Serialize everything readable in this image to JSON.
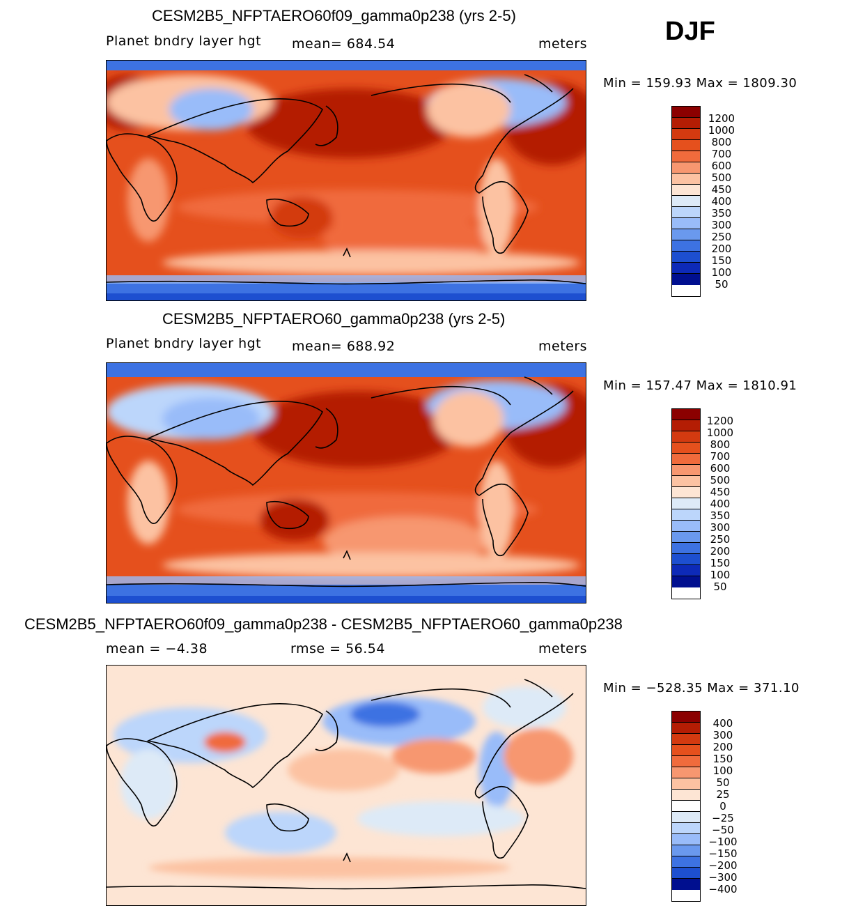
{
  "season": "DJF",
  "panels": [
    {
      "title": "CESM2B5_NFPTAERO60f09_gamma0p238 (yrs 2-5)",
      "variable": "Planet bndry layer hgt",
      "stat": "mean=  684.54",
      "units": "meters",
      "minmax": "Min  =  159.93  Max  =  1809.30",
      "levels": [
        "1200",
        "1000",
        "800",
        "700",
        "600",
        "500",
        "450",
        "400",
        "350",
        "300",
        "250",
        "200",
        "150",
        "100",
        "50"
      ],
      "colors": [
        "#8b0000",
        "#b41d04",
        "#d33a10",
        "#e5501d",
        "#f06b3c",
        "#f79770",
        "#fcc2a2",
        "#fde5d4",
        "#ddeaf7",
        "#bcd6fb",
        "#99bcf9",
        "#6a99ee",
        "#3d72e2",
        "#1d4fd0",
        "#0d2ab8",
        "#000f8f"
      ]
    },
    {
      "title": "CESM2B5_NFPTAERO60_gamma0p238 (yrs 2-5)",
      "variable": "Planet bndry layer hgt",
      "stat": "mean=  688.92",
      "units": "meters",
      "minmax": "Min  =  157.47  Max  =  1810.91",
      "levels": [
        "1200",
        "1000",
        "800",
        "700",
        "600",
        "500",
        "450",
        "400",
        "350",
        "300",
        "250",
        "200",
        "150",
        "100",
        "50"
      ],
      "colors": [
        "#8b0000",
        "#b41d04",
        "#d33a10",
        "#e5501d",
        "#f06b3c",
        "#f79770",
        "#fcc2a2",
        "#fde5d4",
        "#ddeaf7",
        "#bcd6fb",
        "#99bcf9",
        "#6a99ee",
        "#3d72e2",
        "#1d4fd0",
        "#0d2ab8",
        "#000f8f"
      ]
    },
    {
      "title": "CESM2B5_NFPTAERO60f09_gamma0p238 - CESM2B5_NFPTAERO60_gamma0p238",
      "stat_left": "mean  =    −4.38",
      "stat_mid": "rmse  =    56.54",
      "units": "meters",
      "minmax": "Min  =  −528.35  Max  =  371.10",
      "levels": [
        "400",
        "300",
        "200",
        "150",
        "100",
        "50",
        "25",
        "0",
        "−25",
        "−50",
        "−100",
        "−150",
        "−200",
        "−300",
        "−400"
      ],
      "colors": [
        "#8b0000",
        "#b41d04",
        "#d33a10",
        "#e5501d",
        "#f06b3c",
        "#f79770",
        "#fcc2a2",
        "#fde5d4",
        "#ffffff",
        "#ddeaf7",
        "#bcd6fb",
        "#99bcf9",
        "#6a99ee",
        "#3d72e2",
        "#1d4fd0",
        "#000f8f"
      ]
    }
  ]
}
